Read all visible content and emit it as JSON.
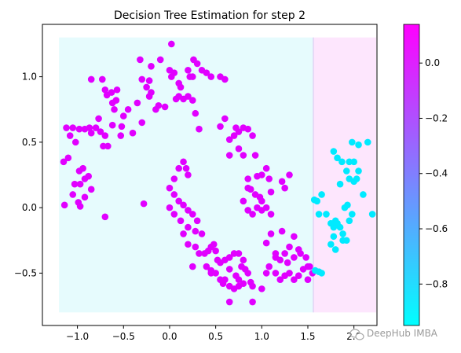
{
  "chart_data": {
    "type": "scatter",
    "title": "Decision Tree Estimation for step 2",
    "xlim": [
      -1.38,
      2.25
    ],
    "ylim": [
      -0.9,
      1.4
    ],
    "xticks": [
      -1.0,
      -0.5,
      0.0,
      0.5,
      1.0,
      1.5,
      2.0
    ],
    "xtick_labels": [
      "−1.0",
      "−0.5",
      "0.0",
      "0.5",
      "1.0",
      "1.5",
      "2.0"
    ],
    "yticks": [
      -0.5,
      0.0,
      0.5,
      1.0
    ],
    "ytick_labels": [
      "−0.5",
      "0.0",
      "0.5",
      "1.0"
    ],
    "grid": false,
    "regions": [
      {
        "x0": -1.2,
        "x1": 1.56,
        "y0": -0.8,
        "y1": 1.3,
        "value": -0.9,
        "color": "#e6fbfd"
      },
      {
        "x0": 1.56,
        "x1": 2.35,
        "y0": -0.8,
        "y1": 1.3,
        "value": 0.1,
        "color": "#fde6fd"
      }
    ],
    "colorbar": {
      "colormap": "cool",
      "range": [
        -0.95,
        0.14
      ],
      "ticks": [
        0.0,
        -0.2,
        -0.4,
        -0.6,
        -0.8
      ],
      "tick_labels": [
        "0.0",
        "−0.2",
        "−0.4",
        "−0.6",
        "−0.8"
      ],
      "low_color": "#00ffff",
      "high_color": "#ff00ff"
    },
    "series": [
      {
        "color": "#e100ff",
        "points": [
          [
            -1.15,
            0.35
          ],
          [
            -1.1,
            0.38
          ],
          [
            -1.12,
            0.61
          ],
          [
            -1.08,
            0.55
          ],
          [
            -1.02,
            0.5
          ],
          [
            -1.05,
            0.61
          ],
          [
            -0.98,
            0.6
          ],
          [
            -0.92,
            0.6
          ],
          [
            -0.87,
            0.61
          ],
          [
            -0.8,
            0.61
          ],
          [
            -0.85,
            0.57
          ],
          [
            -0.94,
            0.3
          ],
          [
            -0.98,
            0.28
          ],
          [
            -0.92,
            0.22
          ],
          [
            -0.88,
            0.24
          ],
          [
            -0.85,
            0.14
          ],
          [
            -0.97,
            0.18
          ],
          [
            -1.03,
            0.18
          ],
          [
            -1.05,
            0.1
          ],
          [
            -0.92,
            0.08
          ],
          [
            -0.99,
            0.04
          ],
          [
            -0.97,
            0.01
          ],
          [
            -1.14,
            0.02
          ],
          [
            -0.72,
            0.47
          ],
          [
            -0.67,
            0.47
          ],
          [
            -0.7,
            0.55
          ],
          [
            -0.75,
            0.58
          ],
          [
            -0.77,
            0.68
          ],
          [
            -0.62,
            0.63
          ],
          [
            -0.6,
            0.75
          ],
          [
            -0.62,
            0.8
          ],
          [
            -0.58,
            0.82
          ],
          [
            -0.7,
            0.9
          ],
          [
            -0.68,
            0.86
          ],
          [
            -0.63,
            0.88
          ],
          [
            -0.57,
            0.9
          ],
          [
            -0.5,
            0.7
          ],
          [
            -0.45,
            0.75
          ],
          [
            -0.35,
            0.8
          ],
          [
            -0.52,
            0.62
          ],
          [
            -0.3,
            0.65
          ],
          [
            -0.4,
            0.57
          ],
          [
            -0.53,
            0.55
          ],
          [
            -0.73,
            0.98
          ],
          [
            -0.85,
            0.98
          ],
          [
            -0.3,
            0.98
          ],
          [
            -0.32,
            1.13
          ],
          [
            -0.2,
            1.08
          ],
          [
            -0.1,
            1.13
          ],
          [
            0.0,
            1.05
          ],
          [
            -0.22,
            0.97
          ],
          [
            -0.25,
            0.92
          ],
          [
            -0.2,
            0.88
          ],
          [
            -0.22,
            0.85
          ],
          [
            -0.15,
            0.75
          ],
          [
            -0.12,
            0.78
          ],
          [
            -0.05,
            0.77
          ],
          [
            0.02,
            1.25
          ],
          [
            0.05,
            1.03
          ],
          [
            0.02,
            1.0
          ],
          [
            0.1,
            0.95
          ],
          [
            0.12,
            0.92
          ],
          [
            0.15,
            0.83
          ],
          [
            0.1,
            0.85
          ],
          [
            0.07,
            0.83
          ],
          [
            0.2,
            1.05
          ],
          [
            0.22,
            1.0
          ],
          [
            0.25,
            1.0
          ],
          [
            0.26,
            1.13
          ],
          [
            0.3,
            1.1
          ],
          [
            0.35,
            1.05
          ],
          [
            0.4,
            1.03
          ],
          [
            0.45,
            1.0
          ],
          [
            0.55,
            1.0
          ],
          [
            0.6,
            0.98
          ],
          [
            0.2,
            0.85
          ],
          [
            0.25,
            0.82
          ],
          [
            0.28,
            0.72
          ],
          [
            0.32,
            0.6
          ],
          [
            0.6,
            0.68
          ],
          [
            0.55,
            0.62
          ],
          [
            0.7,
            0.55
          ],
          [
            0.75,
            0.58
          ],
          [
            0.8,
            0.61
          ],
          [
            0.72,
            0.61
          ],
          [
            0.65,
            0.52
          ],
          [
            0.65,
            0.4
          ],
          [
            0.75,
            0.45
          ],
          [
            0.8,
            0.4
          ],
          [
            0.85,
            0.6
          ],
          [
            0.9,
            0.55
          ],
          [
            0.93,
            0.4
          ],
          [
            0.85,
            0.22
          ],
          [
            0.95,
            0.24
          ],
          [
            1.0,
            0.25
          ],
          [
            1.05,
            0.3
          ],
          [
            0.98,
            0.08
          ],
          [
            1.0,
            0.05
          ],
          [
            1.1,
            0.12
          ],
          [
            1.08,
            0.22
          ],
          [
            1.22,
            0.2
          ],
          [
            1.25,
            0.15
          ],
          [
            1.3,
            0.25
          ],
          [
            0.95,
            0.0
          ],
          [
            1.0,
            -0.02
          ],
          [
            1.05,
            0.0
          ],
          [
            1.1,
            -0.05
          ],
          [
            0.9,
            -0.05
          ],
          [
            0.85,
            -0.02
          ],
          [
            0.8,
            0.05
          ],
          [
            0.85,
            0.15
          ],
          [
            0.93,
            0.1
          ],
          [
            0.88,
            0.14
          ],
          [
            0.15,
            0.35
          ],
          [
            0.18,
            0.3
          ],
          [
            0.2,
            0.25
          ],
          [
            0.1,
            0.3
          ],
          [
            0.05,
            0.22
          ],
          [
            0.0,
            0.15
          ],
          [
            0.05,
            0.1
          ],
          [
            0.1,
            0.05
          ],
          [
            0.15,
            0.02
          ],
          [
            0.2,
            -0.02
          ],
          [
            0.25,
            -0.05
          ],
          [
            0.3,
            -0.1
          ],
          [
            0.0,
            0.0
          ],
          [
            0.05,
            -0.05
          ],
          [
            0.12,
            -0.1
          ],
          [
            0.2,
            -0.15
          ],
          [
            0.28,
            -0.18
          ],
          [
            0.35,
            -0.2
          ],
          [
            0.28,
            -0.3
          ],
          [
            0.32,
            -0.35
          ],
          [
            0.38,
            -0.35
          ],
          [
            0.42,
            -0.33
          ],
          [
            0.45,
            -0.3
          ],
          [
            0.48,
            -0.28
          ],
          [
            0.5,
            -0.33
          ],
          [
            0.52,
            -0.4
          ],
          [
            0.4,
            -0.45
          ],
          [
            0.45,
            -0.5
          ],
          [
            0.55,
            -0.42
          ],
          [
            0.6,
            -0.4
          ],
          [
            0.65,
            -0.38
          ],
          [
            0.7,
            -0.35
          ],
          [
            0.75,
            -0.35
          ],
          [
            0.78,
            -0.45
          ],
          [
            0.8,
            -0.4
          ],
          [
            0.82,
            -0.47
          ],
          [
            0.85,
            -0.5
          ],
          [
            0.65,
            -0.47
          ],
          [
            0.72,
            -0.52
          ],
          [
            0.75,
            -0.55
          ],
          [
            0.6,
            -0.55
          ],
          [
            0.55,
            -0.55
          ],
          [
            0.5,
            -0.5
          ],
          [
            0.45,
            -0.48
          ],
          [
            0.58,
            -0.58
          ],
          [
            0.65,
            -0.6
          ],
          [
            0.7,
            -0.62
          ],
          [
            0.65,
            -0.72
          ],
          [
            0.75,
            -0.6
          ],
          [
            0.8,
            -0.58
          ],
          [
            0.88,
            -0.57
          ],
          [
            0.9,
            -0.6
          ],
          [
            0.9,
            -0.72
          ],
          [
            1.0,
            -0.62
          ],
          [
            1.05,
            -0.5
          ],
          [
            1.08,
            -0.45
          ],
          [
            1.15,
            -0.5
          ],
          [
            1.2,
            -0.55
          ],
          [
            1.25,
            -0.52
          ],
          [
            1.3,
            -0.5
          ],
          [
            1.35,
            -0.55
          ],
          [
            1.4,
            -0.52
          ],
          [
            1.45,
            -0.47
          ],
          [
            1.5,
            -0.55
          ],
          [
            1.55,
            -0.5
          ],
          [
            1.52,
            -0.45
          ],
          [
            1.48,
            -0.38
          ],
          [
            1.42,
            -0.35
          ],
          [
            1.35,
            -0.38
          ],
          [
            1.4,
            -0.32
          ],
          [
            1.3,
            -0.3
          ],
          [
            1.15,
            -0.38
          ],
          [
            1.2,
            -0.4
          ],
          [
            1.28,
            -0.42
          ],
          [
            1.25,
            -0.35
          ],
          [
            1.35,
            -0.22
          ],
          [
            1.22,
            -0.18
          ],
          [
            1.15,
            -0.35
          ],
          [
            1.1,
            -0.2
          ],
          [
            1.05,
            -0.27
          ],
          [
            1.5,
            -0.45
          ],
          [
            0.2,
            -0.28
          ],
          [
            0.15,
            -0.2
          ],
          [
            -0.7,
            -0.07
          ],
          [
            -0.28,
            0.03
          ],
          [
            0.25,
            -0.45
          ]
        ]
      },
      {
        "color": "#00eaff",
        "points": [
          [
            1.57,
            0.06
          ],
          [
            1.6,
            0.05
          ],
          [
            1.65,
            0.1
          ],
          [
            1.62,
            -0.05
          ],
          [
            1.58,
            -0.48
          ],
          [
            1.62,
            -0.49
          ],
          [
            1.65,
            -0.5
          ],
          [
            1.75,
            -0.12
          ],
          [
            1.78,
            -0.15
          ],
          [
            1.8,
            -0.1
          ],
          [
            1.82,
            -0.12
          ],
          [
            1.85,
            -0.15
          ],
          [
            1.88,
            -0.2
          ],
          [
            1.78,
            -0.22
          ],
          [
            1.75,
            -0.28
          ],
          [
            1.8,
            -0.32
          ],
          [
            1.88,
            -0.25
          ],
          [
            1.92,
            -0.25
          ],
          [
            1.95,
            -0.1
          ],
          [
            1.98,
            -0.05
          ],
          [
            1.9,
            0.0
          ],
          [
            1.93,
            0.02
          ],
          [
            1.95,
            0.22
          ],
          [
            2.0,
            0.2
          ],
          [
            2.03,
            0.22
          ],
          [
            2.05,
            0.28
          ],
          [
            1.92,
            0.28
          ],
          [
            1.95,
            0.35
          ],
          [
            2.0,
            0.35
          ],
          [
            2.05,
            0.48
          ],
          [
            2.15,
            0.5
          ],
          [
            1.98,
            0.5
          ],
          [
            1.87,
            0.35
          ],
          [
            1.82,
            0.38
          ],
          [
            1.78,
            0.43
          ],
          [
            1.85,
            0.18
          ],
          [
            2.2,
            -0.05
          ],
          [
            1.7,
            -0.05
          ],
          [
            2.1,
            0.1
          ]
        ]
      }
    ],
    "watermark": "DeepHub IMBA"
  }
}
